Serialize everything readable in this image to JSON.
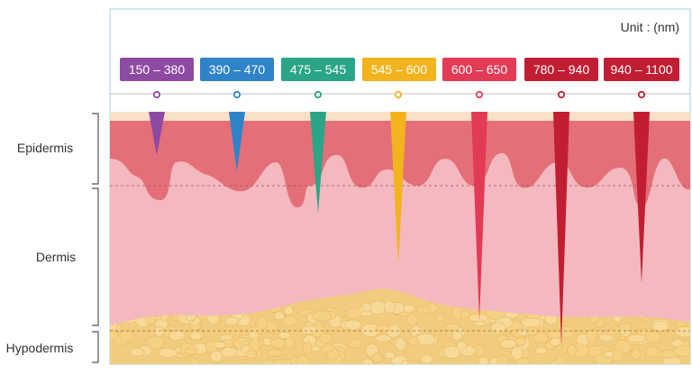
{
  "unit_label": "Unit : (nm)",
  "layers": [
    {
      "id": "epidermis",
      "label": "Epidermis"
    },
    {
      "id": "dermis",
      "label": "Dermis"
    },
    {
      "id": "hypodermis",
      "label": "Hypodermis"
    }
  ],
  "bands": [
    {
      "label": "150 – 380",
      "color": "#8d4aa3",
      "depth": "epidermis-shallow"
    },
    {
      "label": "390 – 470",
      "color": "#2f83c9",
      "depth": "epidermis-deep"
    },
    {
      "label": "475 – 545",
      "color": "#2aa587",
      "depth": "upper-dermis"
    },
    {
      "label": "545 – 600",
      "color": "#f2b31d",
      "depth": "mid-dermis"
    },
    {
      "label": "600 – 650",
      "color": "#e33a55",
      "depth": "deep-dermis"
    },
    {
      "label": "780 – 940",
      "color": "#c21e33",
      "depth": "hypodermis"
    },
    {
      "label": "940 – 1100",
      "color": "#c21e33",
      "depth": "lower-dermis"
    }
  ],
  "colors": {
    "frame": "#bfe4e6",
    "epidermis": "#e46f78",
    "dermis": "#f4b9bf",
    "surface": "#fbe0c8",
    "hypodermis": "#f2cc7e",
    "bracket": "#555555"
  }
}
